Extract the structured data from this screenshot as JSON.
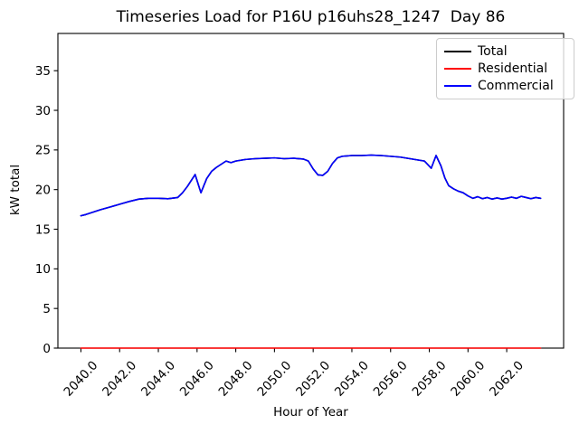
{
  "figure": {
    "background": "#ffffff"
  },
  "chart_data": {
    "type": "line",
    "title": "Timeseries Load for P16U p16uhs28_1247  Day 86",
    "xlabel": "Hour of Year",
    "ylabel": "kW total",
    "xlim": [
      2038.81,
      2064.94
    ],
    "ylim": [
      0,
      39.7
    ],
    "grid": false,
    "axis_color": "#000000",
    "legend_position": "upper right",
    "xtick_values": [
      2040,
      2042,
      2044,
      2046,
      2048,
      2050,
      2052,
      2054,
      2056,
      2058,
      2060,
      2062
    ],
    "xtick_labels": [
      "2040.0",
      "2042.0",
      "2044.0",
      "2046.0",
      "2048.0",
      "2050.0",
      "2052.0",
      "2054.0",
      "2056.0",
      "2058.0",
      "2060.0",
      "2062.0"
    ],
    "xtick_rotation_deg": 47,
    "ytick_values": [
      0,
      5,
      10,
      15,
      20,
      25,
      30,
      35
    ],
    "ytick_labels": [
      "0",
      "5",
      "10",
      "15",
      "20",
      "25",
      "30",
      "35"
    ],
    "series": [
      {
        "name": "Total",
        "color": "#000000",
        "points_ref": "Commercial"
      },
      {
        "name": "Residential",
        "color": "#ff0000",
        "points": [
          [
            2040.0,
            0.0
          ],
          [
            2063.75,
            0.0
          ]
        ]
      },
      {
        "name": "Commercial",
        "color": "#0000ff",
        "points": [
          [
            2040.0,
            16.7
          ],
          [
            2040.25,
            16.85
          ],
          [
            2040.5,
            17.05
          ],
          [
            2040.75,
            17.25
          ],
          [
            2041.0,
            17.45
          ],
          [
            2041.5,
            17.8
          ],
          [
            2042.0,
            18.15
          ],
          [
            2042.5,
            18.5
          ],
          [
            2043.0,
            18.8
          ],
          [
            2043.5,
            18.9
          ],
          [
            2044.0,
            18.9
          ],
          [
            2044.5,
            18.85
          ],
          [
            2045.0,
            19.0
          ],
          [
            2045.25,
            19.6
          ],
          [
            2045.5,
            20.4
          ],
          [
            2045.9,
            21.9
          ],
          [
            2046.2,
            19.6
          ],
          [
            2046.5,
            21.4
          ],
          [
            2046.75,
            22.3
          ],
          [
            2047.0,
            22.8
          ],
          [
            2047.25,
            23.2
          ],
          [
            2047.5,
            23.6
          ],
          [
            2047.75,
            23.4
          ],
          [
            2048.0,
            23.6
          ],
          [
            2048.5,
            23.8
          ],
          [
            2049.0,
            23.9
          ],
          [
            2049.5,
            23.95
          ],
          [
            2050.0,
            24.0
          ],
          [
            2050.5,
            23.9
          ],
          [
            2051.0,
            23.95
          ],
          [
            2051.5,
            23.85
          ],
          [
            2051.75,
            23.6
          ],
          [
            2052.0,
            22.6
          ],
          [
            2052.25,
            21.85
          ],
          [
            2052.5,
            21.8
          ],
          [
            2052.75,
            22.3
          ],
          [
            2053.0,
            23.3
          ],
          [
            2053.25,
            24.0
          ],
          [
            2053.5,
            24.2
          ],
          [
            2054.0,
            24.3
          ],
          [
            2054.5,
            24.3
          ],
          [
            2055.0,
            24.35
          ],
          [
            2055.5,
            24.3
          ],
          [
            2056.0,
            24.2
          ],
          [
            2056.5,
            24.1
          ],
          [
            2057.0,
            23.9
          ],
          [
            2057.5,
            23.7
          ],
          [
            2057.75,
            23.6
          ],
          [
            2058.1,
            22.7
          ],
          [
            2058.35,
            24.3
          ],
          [
            2058.6,
            23.0
          ],
          [
            2058.8,
            21.5
          ],
          [
            2059.0,
            20.5
          ],
          [
            2059.25,
            20.1
          ],
          [
            2059.5,
            19.8
          ],
          [
            2059.75,
            19.6
          ],
          [
            2060.0,
            19.2
          ],
          [
            2060.25,
            18.9
          ],
          [
            2060.5,
            19.1
          ],
          [
            2060.75,
            18.85
          ],
          [
            2061.0,
            19.0
          ],
          [
            2061.25,
            18.8
          ],
          [
            2061.5,
            18.95
          ],
          [
            2061.75,
            18.8
          ],
          [
            2062.0,
            18.9
          ],
          [
            2062.25,
            19.05
          ],
          [
            2062.5,
            18.9
          ],
          [
            2062.75,
            19.15
          ],
          [
            2063.0,
            19.0
          ],
          [
            2063.25,
            18.85
          ],
          [
            2063.5,
            19.0
          ],
          [
            2063.75,
            18.9
          ]
        ]
      }
    ]
  }
}
